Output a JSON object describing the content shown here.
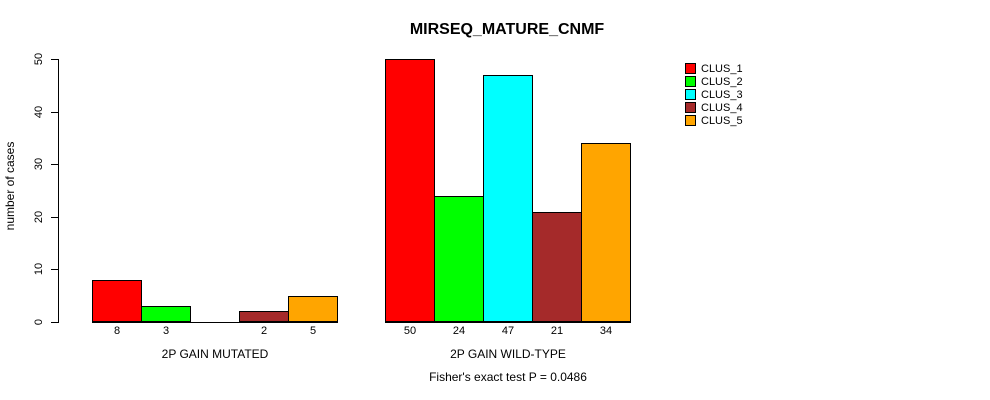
{
  "chart_data": {
    "type": "bar",
    "title": "MIRSEQ_MATURE_CNMF",
    "ylabel": "number of cases",
    "xlabel": "",
    "ylim": [
      0,
      50
    ],
    "yticks": [
      0,
      10,
      20,
      30,
      40,
      50
    ],
    "grid": false,
    "legend_position": "topright",
    "categories": [
      "2P GAIN MUTATED",
      "2P GAIN WILD-TYPE"
    ],
    "series": [
      {
        "name": "CLUS_1",
        "color": "#FF0000",
        "values": [
          8,
          50
        ]
      },
      {
        "name": "CLUS_2",
        "color": "#00FF00",
        "values": [
          3,
          24
        ]
      },
      {
        "name": "CLUS_3",
        "color": "#00FFFF",
        "values": [
          0,
          47
        ]
      },
      {
        "name": "CLUS_4",
        "color": "#A52A2A",
        "values": [
          2,
          21
        ]
      },
      {
        "name": "CLUS_5",
        "color": "#FFA500",
        "values": [
          5,
          34
        ]
      }
    ],
    "value_labels": [
      [
        "8",
        "3",
        "",
        "2",
        "5"
      ],
      [
        "50",
        "24",
        "47",
        "21",
        "34"
      ]
    ]
  },
  "footer": {
    "stat_text": "Fisher's exact test P = 0.0486"
  }
}
